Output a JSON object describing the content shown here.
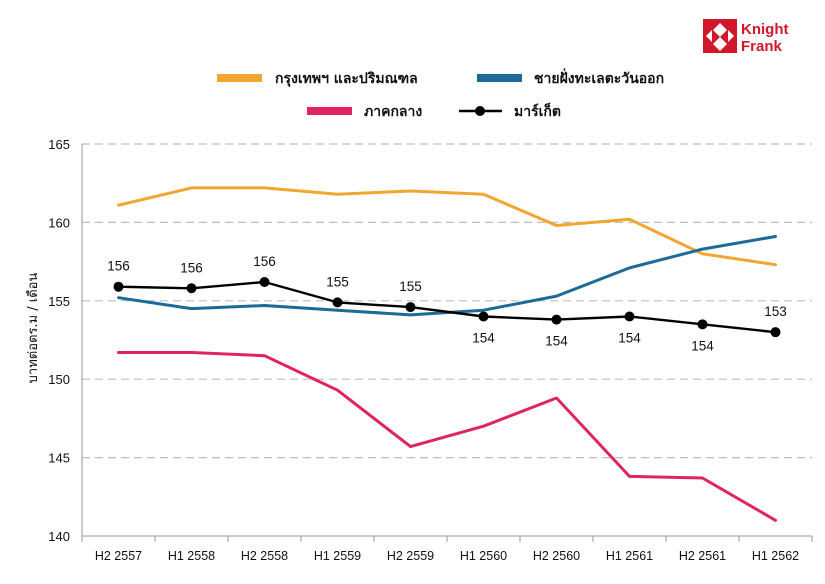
{
  "brand": {
    "line1": "Knight",
    "line2": "Frank",
    "color": "#d3172b"
  },
  "chart_data": {
    "type": "line",
    "categories": [
      "H2 2557",
      "H1 2558",
      "H2 2558",
      "H1 2559",
      "H2 2559",
      "H1 2560",
      "H2 2560",
      "H1 2561",
      "H2 2561",
      "H1 2562"
    ],
    "ylabel": "บาทต่อตร.ม / เดือน",
    "xlabel": "",
    "ylim": [
      140,
      165
    ],
    "yticks": [
      140,
      145,
      150,
      155,
      160,
      165
    ],
    "grid": "horizontal dashed",
    "legend_position": "top",
    "series": [
      {
        "name": "กรุงเทพฯ และปริมณฑล",
        "color": "#f2a531",
        "marker": false,
        "values": [
          161.1,
          162.2,
          162.2,
          161.8,
          162.0,
          161.8,
          159.8,
          160.2,
          158.0,
          157.3
        ]
      },
      {
        "name": "ชายฝั่งทะเลตะวันออก",
        "color": "#1b6a97",
        "marker": false,
        "values": [
          155.2,
          154.5,
          154.7,
          154.4,
          154.1,
          154.4,
          155.3,
          157.1,
          158.3,
          159.1
        ]
      },
      {
        "name": "ภาคกลาง",
        "color": "#e0245e",
        "marker": false,
        "values": [
          151.7,
          151.7,
          151.5,
          149.3,
          145.7,
          147.0,
          148.8,
          143.8,
          143.7,
          141.0
        ]
      },
      {
        "name": "มาร์เก็ต",
        "color": "#000000",
        "marker": true,
        "values": [
          155.9,
          155.8,
          156.2,
          154.9,
          154.6,
          154.0,
          153.8,
          154.0,
          153.5,
          153.0
        ],
        "labels": [
          "156",
          "156",
          "156",
          "155",
          "155",
          "154",
          "154",
          "154",
          "154",
          "153"
        ],
        "label_side": [
          "above",
          "above",
          "above",
          "above",
          "above",
          "below",
          "below",
          "below",
          "below",
          "above"
        ]
      }
    ]
  }
}
